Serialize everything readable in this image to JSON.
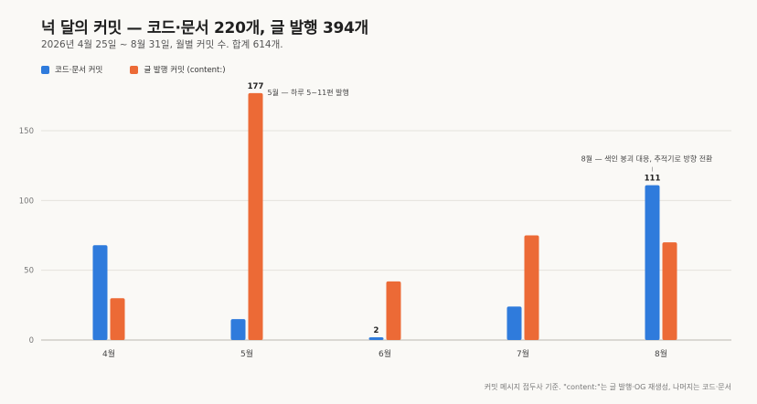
{
  "header": {
    "title": "넉 달의 커밋 — 코드·문서 220개, 글 발행 394개",
    "subtitle": "2026년 4월 25일 ~ 8월 31일, 월별 커밋 수. 합계 614개."
  },
  "footer": {
    "note": "커밋 메시지 접두사 기준. \"content:\"는 글 발행·OG 재생성, 나머지는 코드·문서"
  },
  "colors": {
    "code": "#2f7bdc",
    "content": "#ec6a36"
  },
  "chart_data": {
    "type": "bar",
    "categories": [
      "4월",
      "5월",
      "6월",
      "7월",
      "8월"
    ],
    "series": [
      {
        "name": "코드·문서 커밋",
        "values": [
          68,
          15,
          2,
          24,
          111
        ]
      },
      {
        "name": "글 발행 커밋 (content:)",
        "values": [
          30,
          177,
          42,
          75,
          70
        ]
      }
    ],
    "ylim": [
      0,
      190
    ],
    "yticks": [
      0,
      50,
      100,
      150
    ],
    "grid": true,
    "legend": "top-left",
    "data_labels": [
      {
        "series": 1,
        "index": 1,
        "text": "177"
      },
      {
        "series": 0,
        "index": 2,
        "text": "2"
      },
      {
        "series": 0,
        "index": 4,
        "text": "111"
      }
    ],
    "annotations": [
      {
        "series": 1,
        "index": 1,
        "text": "5월 — 하루 5~11편 발행"
      },
      {
        "series": 0,
        "index": 4,
        "text": "8월 — 색인 붕괴 대응, 추적기로 방향 전환"
      }
    ]
  }
}
